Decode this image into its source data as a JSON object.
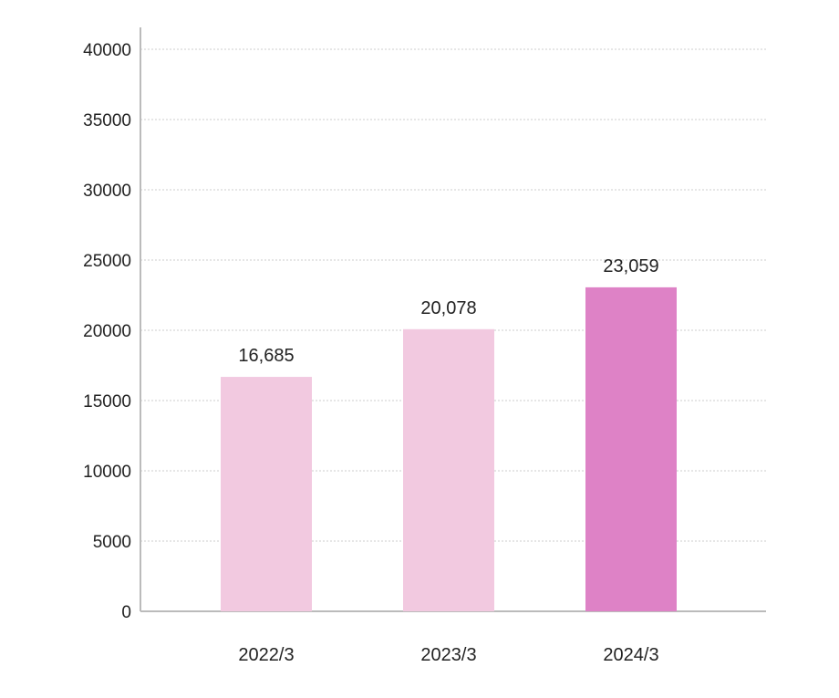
{
  "chart_data": {
    "type": "bar",
    "categories": [
      "2022/3",
      "2023/3",
      "2024/3"
    ],
    "values": [
      16685,
      20078,
      23059
    ],
    "data_labels": [
      "16,685",
      "20,078",
      "23,059"
    ],
    "title": "",
    "xlabel": "",
    "ylabel": "",
    "ylim": [
      0,
      40000
    ],
    "yticks": [
      0,
      5000,
      10000,
      15000,
      20000,
      25000,
      30000,
      35000,
      40000
    ],
    "ytick_labels": [
      "0",
      "5000",
      "10000",
      "15000",
      "20000",
      "25000",
      "30000",
      "35000",
      "40000"
    ],
    "grid": true,
    "legend": "none",
    "colors": {
      "bar": "#f2c9e0",
      "bar_highlight": "#de82c6",
      "axis": "#bbbbbb",
      "grid": "#cccccc",
      "text": "#222222"
    },
    "highlight_index": 2
  }
}
